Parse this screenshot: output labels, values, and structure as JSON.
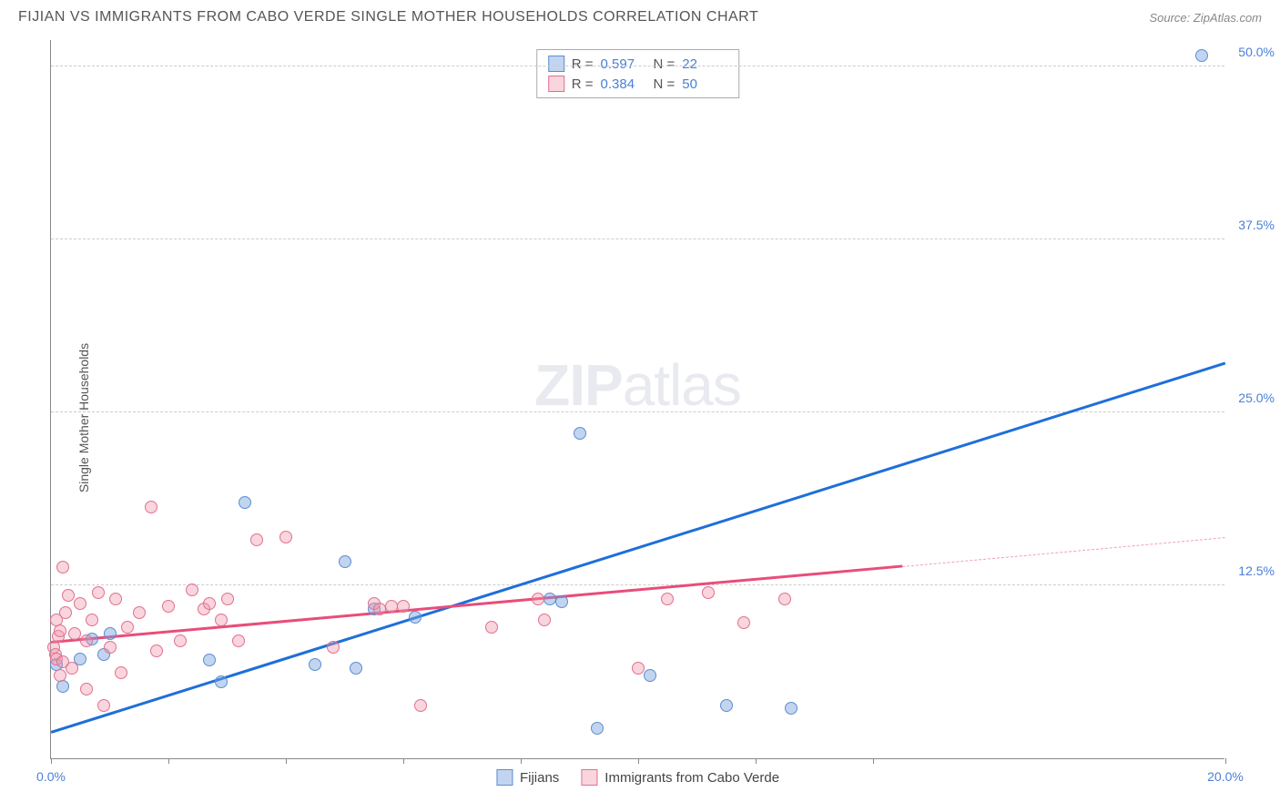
{
  "title": "FIJIAN VS IMMIGRANTS FROM CABO VERDE SINGLE MOTHER HOUSEHOLDS CORRELATION CHART",
  "source": "Source: ZipAtlas.com",
  "ylabel": "Single Mother Households",
  "watermark_a": "ZIP",
  "watermark_b": "atlas",
  "chart": {
    "type": "scatter",
    "xlim": [
      0,
      20
    ],
    "ylim": [
      0,
      52
    ],
    "xticks": [
      0,
      2,
      4,
      6,
      8,
      10,
      12,
      14,
      20
    ],
    "xtick_labels": {
      "0": "0.0%",
      "20": "20.0%"
    },
    "yticks": [
      12.5,
      25.0,
      37.5,
      50.0
    ],
    "ytick_labels": [
      "12.5%",
      "25.0%",
      "37.5%",
      "50.0%"
    ],
    "grid_color": "#cccccc",
    "background_color": "#ffffff",
    "axis_color": "#888888",
    "series": [
      {
        "key": "a",
        "name": "Fijians",
        "color_fill": "rgba(120,160,220,0.45)",
        "color_stroke": "#5a8fd0",
        "line_color": "#1e6fd9",
        "R": "0.597",
        "N": "22",
        "points": [
          [
            0.1,
            6.8
          ],
          [
            0.2,
            5.2
          ],
          [
            0.5,
            7.2
          ],
          [
            0.7,
            8.6
          ],
          [
            0.9,
            7.5
          ],
          [
            1.0,
            9.0
          ],
          [
            2.7,
            7.1
          ],
          [
            2.9,
            5.5
          ],
          [
            3.3,
            18.5
          ],
          [
            4.5,
            6.8
          ],
          [
            5.0,
            14.2
          ],
          [
            5.2,
            6.5
          ],
          [
            5.5,
            10.8
          ],
          [
            6.2,
            10.2
          ],
          [
            8.5,
            11.5
          ],
          [
            8.7,
            11.3
          ],
          [
            9.0,
            23.5
          ],
          [
            9.3,
            2.2
          ],
          [
            10.2,
            6.0
          ],
          [
            11.5,
            3.8
          ],
          [
            12.6,
            3.6
          ],
          [
            19.6,
            50.8
          ]
        ],
        "trend": {
          "x1": 0,
          "y1": 1.8,
          "x2": 20,
          "y2": 28.5
        }
      },
      {
        "key": "b",
        "name": "Immigrants from Cabo Verde",
        "color_fill": "rgba(240,150,170,0.40)",
        "color_stroke": "#e07090",
        "line_color": "#e84d7a",
        "R": "0.384",
        "N": "50",
        "points": [
          [
            0.05,
            8.0
          ],
          [
            0.08,
            7.5
          ],
          [
            0.1,
            7.2
          ],
          [
            0.1,
            10.0
          ],
          [
            0.12,
            8.8
          ],
          [
            0.15,
            6.0
          ],
          [
            0.15,
            9.2
          ],
          [
            0.2,
            13.8
          ],
          [
            0.2,
            7.0
          ],
          [
            0.25,
            10.5
          ],
          [
            0.3,
            11.8
          ],
          [
            0.35,
            6.5
          ],
          [
            0.4,
            9.0
          ],
          [
            0.5,
            11.2
          ],
          [
            0.6,
            8.5
          ],
          [
            0.6,
            5.0
          ],
          [
            0.7,
            10.0
          ],
          [
            0.8,
            12.0
          ],
          [
            0.9,
            3.8
          ],
          [
            1.0,
            8.0
          ],
          [
            1.1,
            11.5
          ],
          [
            1.2,
            6.2
          ],
          [
            1.3,
            9.5
          ],
          [
            1.5,
            10.5
          ],
          [
            1.7,
            18.2
          ],
          [
            1.8,
            7.8
          ],
          [
            2.0,
            11.0
          ],
          [
            2.2,
            8.5
          ],
          [
            2.4,
            12.2
          ],
          [
            2.6,
            10.8
          ],
          [
            2.7,
            11.2
          ],
          [
            2.9,
            10.0
          ],
          [
            3.0,
            11.5
          ],
          [
            3.2,
            8.5
          ],
          [
            3.5,
            15.8
          ],
          [
            4.0,
            16.0
          ],
          [
            4.8,
            8.0
          ],
          [
            5.5,
            11.2
          ],
          [
            5.6,
            10.8
          ],
          [
            5.8,
            11.0
          ],
          [
            6.0,
            11.0
          ],
          [
            6.3,
            3.8
          ],
          [
            7.5,
            9.5
          ],
          [
            8.3,
            11.5
          ],
          [
            8.4,
            10.0
          ],
          [
            10.5,
            11.5
          ],
          [
            11.2,
            12.0
          ],
          [
            12.5,
            11.5
          ],
          [
            10.0,
            6.5
          ],
          [
            11.8,
            9.8
          ]
        ],
        "trend": {
          "x1": 0,
          "y1": 8.3,
          "x2": 14.5,
          "y2": 13.8
        },
        "trend_ext": {
          "x1": 14.5,
          "y1": 13.8,
          "x2": 20,
          "y2": 15.9
        }
      }
    ],
    "stats_labels": {
      "R": "R =",
      "N": "N ="
    },
    "legend": [
      "Fijians",
      "Immigrants from Cabo Verde"
    ]
  }
}
